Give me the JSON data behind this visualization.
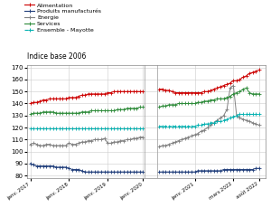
{
  "title": "Indice base 2006",
  "legend": [
    "Alimentation",
    "Produits manufacturés",
    "Energie",
    "Services",
    "Ensemble - Mayotte"
  ],
  "colors": [
    "#cc0000",
    "#1f3d7a",
    "#808080",
    "#2e8b3a",
    "#00b0b0"
  ],
  "line_styles": [
    "-",
    "-",
    "-",
    "-",
    "--"
  ],
  "ylim": [
    78,
    172
  ],
  "yticks": [
    80,
    90,
    100,
    110,
    120,
    130,
    140,
    150,
    160,
    170
  ],
  "xtick_labels": [
    "janv. 2017",
    "janv. 2018",
    "janv. 2019",
    "janv. 2020",
    "janv. 2021",
    "mars 2022",
    "août 2022"
  ],
  "xtick_pos": [
    0,
    12,
    24,
    35,
    47,
    59,
    67
  ],
  "n_before": 36,
  "n_after_start": 36,
  "alimentation_before": [
    140,
    141,
    141,
    142,
    143,
    143,
    144,
    144,
    144,
    144,
    144,
    144,
    145,
    145,
    145,
    146,
    147,
    147,
    148,
    148,
    148,
    148,
    148,
    148,
    149,
    149,
    150,
    150,
    150,
    150,
    150,
    150,
    150,
    150,
    150,
    150
  ],
  "alimentation_after": [
    152,
    152,
    151,
    151,
    150,
    149,
    149,
    149,
    149,
    149,
    149,
    149,
    149,
    149,
    150,
    150,
    151,
    152,
    153,
    154,
    155,
    156,
    157,
    159,
    159,
    160,
    162,
    163,
    165,
    166,
    167,
    168
  ],
  "produits_before": [
    90,
    89,
    88,
    88,
    88,
    88,
    88,
    88,
    87,
    87,
    87,
    87,
    86,
    85,
    85,
    85,
    84,
    83,
    83,
    83,
    83,
    83,
    83,
    83,
    83,
    83,
    83,
    83,
    83,
    83,
    83,
    83,
    83,
    83,
    83,
    83
  ],
  "produits_after": [
    83,
    83,
    83,
    83,
    83,
    83,
    83,
    83,
    83,
    83,
    83,
    83,
    84,
    84,
    84,
    84,
    84,
    84,
    84,
    84,
    85,
    85,
    85,
    85,
    85,
    85,
    85,
    85,
    85,
    85,
    86,
    86
  ],
  "energie_before": [
    106,
    107,
    106,
    105,
    105,
    106,
    106,
    105,
    105,
    105,
    105,
    105,
    107,
    106,
    106,
    107,
    108,
    108,
    109,
    109,
    110,
    110,
    110,
    111,
    107,
    107,
    108,
    108,
    109,
    109,
    110,
    110,
    111,
    111,
    112,
    112
  ],
  "energie_after": [
    104,
    105,
    105,
    106,
    107,
    108,
    109,
    110,
    111,
    112,
    113,
    114,
    115,
    117,
    118,
    120,
    122,
    124,
    126,
    128,
    130,
    135,
    153,
    155,
    130,
    128,
    127,
    126,
    125,
    124,
    123,
    122
  ],
  "services_before": [
    131,
    132,
    132,
    132,
    133,
    133,
    133,
    133,
    132,
    132,
    132,
    132,
    132,
    132,
    132,
    132,
    133,
    133,
    133,
    134,
    134,
    134,
    134,
    134,
    134,
    134,
    134,
    135,
    135,
    135,
    136,
    136,
    136,
    136,
    137,
    137
  ],
  "services_after": [
    137,
    138,
    138,
    139,
    139,
    139,
    140,
    140,
    140,
    140,
    140,
    140,
    141,
    141,
    142,
    142,
    143,
    143,
    144,
    144,
    144,
    145,
    146,
    148,
    149,
    150,
    152,
    153,
    149,
    148,
    148,
    148
  ],
  "ensemble_before": [
    119,
    119,
    119,
    119,
    119,
    119,
    119,
    119,
    119,
    119,
    119,
    119,
    119,
    119,
    119,
    119,
    119,
    119,
    119,
    119,
    119,
    119,
    119,
    119,
    119,
    119,
    119,
    119,
    119,
    119,
    119,
    119,
    119,
    119,
    119,
    119
  ],
  "ensemble_after": [
    121,
    121,
    121,
    121,
    121,
    121,
    121,
    121,
    121,
    121,
    121,
    121,
    122,
    122,
    123,
    123,
    124,
    124,
    125,
    125,
    126,
    127,
    128,
    129,
    130,
    131,
    131,
    131,
    131,
    131,
    131,
    131
  ]
}
